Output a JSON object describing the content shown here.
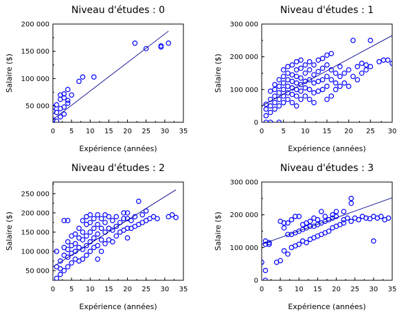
{
  "chart_data": [
    {
      "type": "scatter",
      "title": "Niveau d'études :  0",
      "xlabel": "Expérience (années)",
      "ylabel": "Salaire ($)",
      "xlim": [
        0,
        35
      ],
      "ylim": [
        20000,
        200000
      ],
      "xticks": [
        0,
        5,
        10,
        15,
        20,
        25,
        30,
        35
      ],
      "yticks": [
        50000,
        100000,
        150000,
        200000
      ],
      "ytick_labels": [
        "50 000",
        "100 000",
        "150 000",
        "200 000"
      ],
      "points": [
        [
          0,
          25000
        ],
        [
          0,
          40000
        ],
        [
          0,
          48000
        ],
        [
          1,
          22000
        ],
        [
          1,
          38000
        ],
        [
          1,
          52000
        ],
        [
          2,
          30000
        ],
        [
          2,
          45000
        ],
        [
          2,
          62000
        ],
        [
          2,
          70000
        ],
        [
          3,
          35000
        ],
        [
          3,
          48000
        ],
        [
          3,
          65000
        ],
        [
          3,
          72000
        ],
        [
          4,
          55000
        ],
        [
          4,
          60000
        ],
        [
          4,
          80000
        ],
        [
          5,
          70000
        ],
        [
          7,
          95000
        ],
        [
          8,
          103000
        ],
        [
          11,
          103000
        ],
        [
          22,
          165000
        ],
        [
          25,
          155000
        ],
        [
          29,
          158000
        ],
        [
          29,
          160000
        ],
        [
          31,
          165000
        ]
      ],
      "fit": [
        [
          0,
          25000
        ],
        [
          31,
          187000
        ]
      ],
      "marker_color": "#0000ff",
      "line_color": "#00008b"
    },
    {
      "type": "scatter",
      "title": "Niveau d'études :  1",
      "xlabel": "Expérience (années)",
      "ylabel": "Salaire ($)",
      "xlim": [
        0,
        30
      ],
      "ylim": [
        0,
        300000
      ],
      "xticks": [
        0,
        5,
        10,
        15,
        20,
        25,
        30
      ],
      "yticks": [
        0,
        100000,
        200000,
        300000
      ],
      "ytick_labels": [
        "0",
        "100 000",
        "200 000",
        "300 000"
      ],
      "points": [
        [
          1,
          0
        ],
        [
          1,
          20000
        ],
        [
          1,
          40000
        ],
        [
          1,
          55000
        ],
        [
          2,
          0
        ],
        [
          2,
          30000
        ],
        [
          2,
          50000
        ],
        [
          2,
          70000
        ],
        [
          2,
          95000
        ],
        [
          3,
          40000
        ],
        [
          3,
          60000
        ],
        [
          3,
          80000
        ],
        [
          3,
          100000
        ],
        [
          3,
          115000
        ],
        [
          4,
          0
        ],
        [
          4,
          50000
        ],
        [
          4,
          70000
        ],
        [
          4,
          90000
        ],
        [
          4,
          110000
        ],
        [
          4,
          130000
        ],
        [
          5,
          60000
        ],
        [
          5,
          80000
        ],
        [
          5,
          100000
        ],
        [
          5,
          120000
        ],
        [
          5,
          140000
        ],
        [
          5,
          160000
        ],
        [
          6,
          70000
        ],
        [
          6,
          90000
        ],
        [
          6,
          110000
        ],
        [
          6,
          130000
        ],
        [
          6,
          150000
        ],
        [
          6,
          170000
        ],
        [
          7,
          60000
        ],
        [
          7,
          85000
        ],
        [
          7,
          105000
        ],
        [
          7,
          125000
        ],
        [
          7,
          145000
        ],
        [
          7,
          175000
        ],
        [
          8,
          50000
        ],
        [
          8,
          80000
        ],
        [
          8,
          100000
        ],
        [
          8,
          120000
        ],
        [
          8,
          140000
        ],
        [
          8,
          160000
        ],
        [
          8,
          185000
        ],
        [
          9,
          70000
        ],
        [
          9,
          95000
        ],
        [
          9,
          115000
        ],
        [
          9,
          135000
        ],
        [
          9,
          165000
        ],
        [
          9,
          190000
        ],
        [
          10,
          80000
        ],
        [
          10,
          105000
        ],
        [
          10,
          125000
        ],
        [
          10,
          150000
        ],
        [
          10,
          175000
        ],
        [
          11,
          70000
        ],
        [
          11,
          100000
        ],
        [
          11,
          130000
        ],
        [
          11,
          160000
        ],
        [
          11,
          185000
        ],
        [
          12,
          60000
        ],
        [
          12,
          90000
        ],
        [
          12,
          120000
        ],
        [
          12,
          145000
        ],
        [
          12,
          175000
        ],
        [
          13,
          95000
        ],
        [
          13,
          125000
        ],
        [
          13,
          155000
        ],
        [
          13,
          190000
        ],
        [
          14,
          100000
        ],
        [
          14,
          130000
        ],
        [
          14,
          165000
        ],
        [
          14,
          195000
        ],
        [
          15,
          70000
        ],
        [
          15,
          110000
        ],
        [
          15,
          140000
        ],
        [
          15,
          175000
        ],
        [
          15,
          205000
        ],
        [
          16,
          80000
        ],
        [
          16,
          130000
        ],
        [
          16,
          160000
        ],
        [
          16,
          210000
        ],
        [
          17,
          100000
        ],
        [
          17,
          120000
        ],
        [
          17,
          150000
        ],
        [
          18,
          110000
        ],
        [
          18,
          140000
        ],
        [
          18,
          170000
        ],
        [
          19,
          120000
        ],
        [
          19,
          150000
        ],
        [
          20,
          110000
        ],
        [
          20,
          160000
        ],
        [
          21,
          140000
        ],
        [
          21,
          250000
        ],
        [
          22,
          130000
        ],
        [
          22,
          170000
        ],
        [
          23,
          150000
        ],
        [
          23,
          180000
        ],
        [
          24,
          160000
        ],
        [
          24,
          175000
        ],
        [
          25,
          170000
        ],
        [
          25,
          250000
        ],
        [
          27,
          185000
        ],
        [
          28,
          190000
        ],
        [
          29,
          190000
        ],
        [
          30,
          180000
        ]
      ],
      "fit": [
        [
          0,
          50000
        ],
        [
          30,
          265000
        ]
      ],
      "marker_color": "#0000ff",
      "line_color": "#00008b"
    },
    {
      "type": "scatter",
      "title": "Niveau d'études :  2",
      "xlabel": "Expérience (années)",
      "ylabel": "Salaire ($)",
      "xlim": [
        0,
        35
      ],
      "ylim": [
        25000,
        280000
      ],
      "xticks": [
        0,
        5,
        10,
        15,
        20,
        25,
        30,
        35
      ],
      "yticks": [
        50000,
        100000,
        150000,
        200000,
        250000
      ],
      "ytick_labels": [
        "50 000",
        "100 000",
        "150 000",
        "200 000",
        "250 000"
      ],
      "points": [
        [
          1,
          30000
        ],
        [
          1,
          60000
        ],
        [
          1,
          100000
        ],
        [
          2,
          40000
        ],
        [
          2,
          55000
        ],
        [
          2,
          75000
        ],
        [
          3,
          50000
        ],
        [
          3,
          90000
        ],
        [
          3,
          110000
        ],
        [
          3,
          180000
        ],
        [
          4,
          60000
        ],
        [
          4,
          85000
        ],
        [
          4,
          105000
        ],
        [
          4,
          125000
        ],
        [
          4,
          180000
        ],
        [
          5,
          70000
        ],
        [
          5,
          95000
        ],
        [
          5,
          115000
        ],
        [
          5,
          140000
        ],
        [
          6,
          80000
        ],
        [
          6,
          100000
        ],
        [
          6,
          120000
        ],
        [
          6,
          145000
        ],
        [
          7,
          75000
        ],
        [
          7,
          110000
        ],
        [
          7,
          135000
        ],
        [
          7,
          160000
        ],
        [
          8,
          80000
        ],
        [
          8,
          105000
        ],
        [
          8,
          130000
        ],
        [
          8,
          150000
        ],
        [
          8,
          180000
        ],
        [
          9,
          90000
        ],
        [
          9,
          115000
        ],
        [
          9,
          140000
        ],
        [
          9,
          170000
        ],
        [
          9,
          190000
        ],
        [
          10,
          100000
        ],
        [
          10,
          125000
        ],
        [
          10,
          150000
        ],
        [
          10,
          175000
        ],
        [
          10,
          195000
        ],
        [
          11,
          110000
        ],
        [
          11,
          135000
        ],
        [
          11,
          160000
        ],
        [
          11,
          185000
        ],
        [
          12,
          80000
        ],
        [
          12,
          115000
        ],
        [
          12,
          145000
        ],
        [
          12,
          170000
        ],
        [
          12,
          195000
        ],
        [
          13,
          100000
        ],
        [
          13,
          130000
        ],
        [
          13,
          160000
        ],
        [
          13,
          185000
        ],
        [
          14,
          120000
        ],
        [
          14,
          150000
        ],
        [
          14,
          175000
        ],
        [
          14,
          195000
        ],
        [
          15,
          130000
        ],
        [
          15,
          160000
        ],
        [
          15,
          190000
        ],
        [
          16,
          125000
        ],
        [
          16,
          155000
        ],
        [
          16,
          180000
        ],
        [
          17,
          140000
        ],
        [
          17,
          165000
        ],
        [
          17,
          190000
        ],
        [
          18,
          150000
        ],
        [
          18,
          175000
        ],
        [
          19,
          155000
        ],
        [
          19,
          185000
        ],
        [
          19,
          200000
        ],
        [
          20,
          135000
        ],
        [
          20,
          160000
        ],
        [
          20,
          185000
        ],
        [
          20,
          200000
        ],
        [
          21,
          160000
        ],
        [
          21,
          180000
        ],
        [
          22,
          165000
        ],
        [
          22,
          190000
        ],
        [
          23,
          170000
        ],
        [
          23,
          230000
        ],
        [
          24,
          175000
        ],
        [
          24,
          195000
        ],
        [
          25,
          180000
        ],
        [
          25,
          205000
        ],
        [
          26,
          185000
        ],
        [
          27,
          190000
        ],
        [
          28,
          185000
        ],
        [
          31,
          190000
        ],
        [
          32,
          195000
        ],
        [
          33,
          188000
        ]
      ],
      "fit": [
        [
          0,
          60000
        ],
        [
          33,
          260000
        ]
      ],
      "marker_color": "#0000ff",
      "line_color": "#00008b"
    },
    {
      "type": "scatter",
      "title": "Niveau d'études :  3",
      "xlabel": "Expérience (années)",
      "ylabel": "Salaire ($)",
      "xlim": [
        0,
        35
      ],
      "ylim": [
        0,
        300000
      ],
      "xticks": [
        0,
        5,
        10,
        15,
        20,
        25,
        30,
        35
      ],
      "yticks": [
        0,
        100000,
        200000,
        300000
      ],
      "ytick_labels": [
        "0",
        "100 000",
        "200 000",
        "300 000"
      ],
      "points": [
        [
          0,
          55000
        ],
        [
          1,
          0
        ],
        [
          1,
          30000
        ],
        [
          1,
          110000
        ],
        [
          1,
          120000
        ],
        [
          2,
          110000
        ],
        [
          2,
          115000
        ],
        [
          4,
          55000
        ],
        [
          5,
          60000
        ],
        [
          5,
          180000
        ],
        [
          6,
          90000
        ],
        [
          6,
          160000
        ],
        [
          6,
          175000
        ],
        [
          7,
          80000
        ],
        [
          7,
          140000
        ],
        [
          7,
          175000
        ],
        [
          8,
          100000
        ],
        [
          8,
          140000
        ],
        [
          8,
          185000
        ],
        [
          9,
          105000
        ],
        [
          9,
          145000
        ],
        [
          9,
          195000
        ],
        [
          10,
          110000
        ],
        [
          10,
          150000
        ],
        [
          10,
          195000
        ],
        [
          11,
          120000
        ],
        [
          11,
          155000
        ],
        [
          11,
          170000
        ],
        [
          12,
          115000
        ],
        [
          12,
          160000
        ],
        [
          12,
          175000
        ],
        [
          13,
          125000
        ],
        [
          13,
          165000
        ],
        [
          13,
          180000
        ],
        [
          14,
          130000
        ],
        [
          14,
          165000
        ],
        [
          14,
          190000
        ],
        [
          15,
          135000
        ],
        [
          15,
          170000
        ],
        [
          15,
          185000
        ],
        [
          16,
          140000
        ],
        [
          16,
          175000
        ],
        [
          16,
          210000
        ],
        [
          17,
          145000
        ],
        [
          17,
          180000
        ],
        [
          17,
          195000
        ],
        [
          18,
          150000
        ],
        [
          18,
          185000
        ],
        [
          19,
          160000
        ],
        [
          19,
          190000
        ],
        [
          19,
          200000
        ],
        [
          20,
          165000
        ],
        [
          20,
          195000
        ],
        [
          20,
          210000
        ],
        [
          21,
          170000
        ],
        [
          22,
          175000
        ],
        [
          22,
          185000
        ],
        [
          22,
          210000
        ],
        [
          23,
          190000
        ],
        [
          24,
          180000
        ],
        [
          24,
          235000
        ],
        [
          24,
          250000
        ],
        [
          25,
          190000
        ],
        [
          26,
          185000
        ],
        [
          27,
          195000
        ],
        [
          28,
          190000
        ],
        [
          29,
          188000
        ],
        [
          30,
          120000
        ],
        [
          30,
          195000
        ],
        [
          31,
          190000
        ],
        [
          32,
          195000
        ],
        [
          33,
          185000
        ],
        [
          34,
          190000
        ]
      ],
      "fit": [
        [
          0,
          110000
        ],
        [
          35,
          252000
        ]
      ],
      "marker_color": "#0000ff",
      "line_color": "#00008b"
    }
  ]
}
